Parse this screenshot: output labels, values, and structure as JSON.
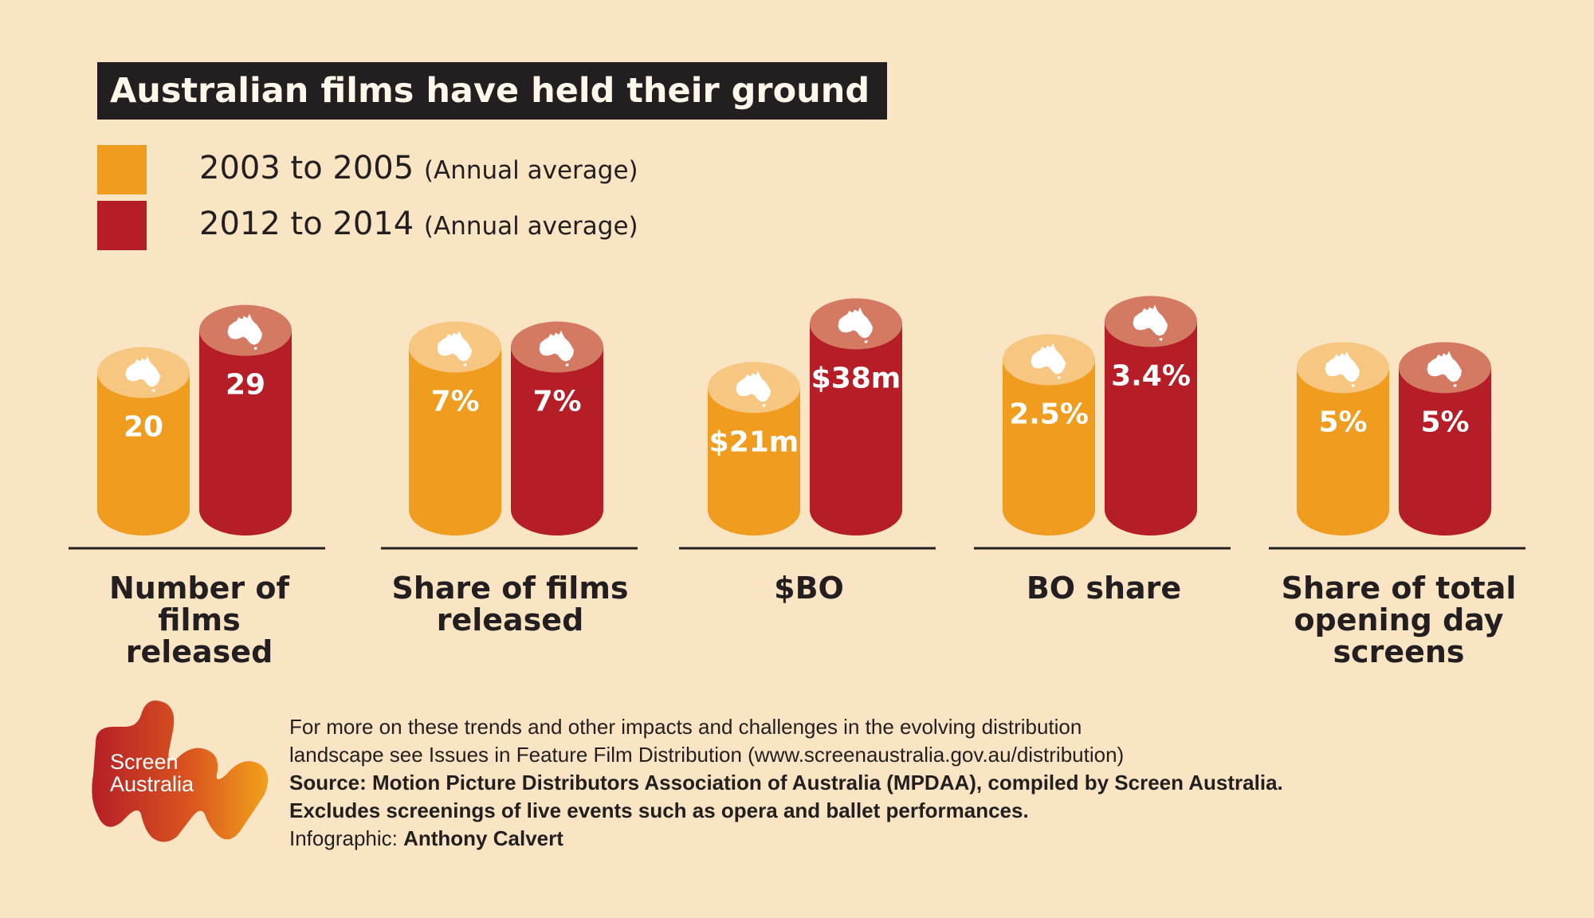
{
  "chart_data": {
    "type": "bar",
    "title": "Australian films have held their ground",
    "series": [
      {
        "name": "2003 to 2005",
        "note": "(Annual average)",
        "color": "#ef9c1f",
        "top_color": "#f7c681",
        "values": [
          "20",
          "7%",
          "$21m",
          "2.5%",
          "5%"
        ]
      },
      {
        "name": "2012 to 2014",
        "note": "(Annual average)",
        "color": "#b51e27",
        "top_color": "#d57a62",
        "values": [
          "29",
          "7%",
          "$38m",
          "3.4%",
          "5%"
        ]
      }
    ],
    "categories": [
      {
        "label": [
          "Number of films",
          "released"
        ],
        "values": [
          20,
          29
        ]
      },
      {
        "label": [
          "Share of films",
          "released"
        ],
        "values": [
          7,
          7
        ]
      },
      {
        "label": [
          "$BO"
        ],
        "values": [
          21,
          38
        ]
      },
      {
        "label": [
          "BO share"
        ],
        "values": [
          2.5,
          3.4
        ]
      },
      {
        "label": [
          "Share of total",
          "opening day",
          "screens"
        ],
        "values": [
          5,
          5
        ]
      }
    ],
    "legend_position": "top-left",
    "grid": false
  },
  "logo": {
    "line1": "Screen",
    "line2": "Australia"
  },
  "footer": {
    "line1": "For more on these trends and other impacts and challenges in the evolving distribution",
    "line2": "landscape see Issues in Feature Film Distribution (www.screenaustralia.gov.au/distribution)",
    "line3": "Source: Motion Picture Distributors Association of Australia (MPDAA), compiled by Screen Australia.",
    "line4": "Excludes screenings of live events such as opera and ballet performances.",
    "line5_prefix": "Infographic: ",
    "line5_name": "Anthony Calvert"
  }
}
